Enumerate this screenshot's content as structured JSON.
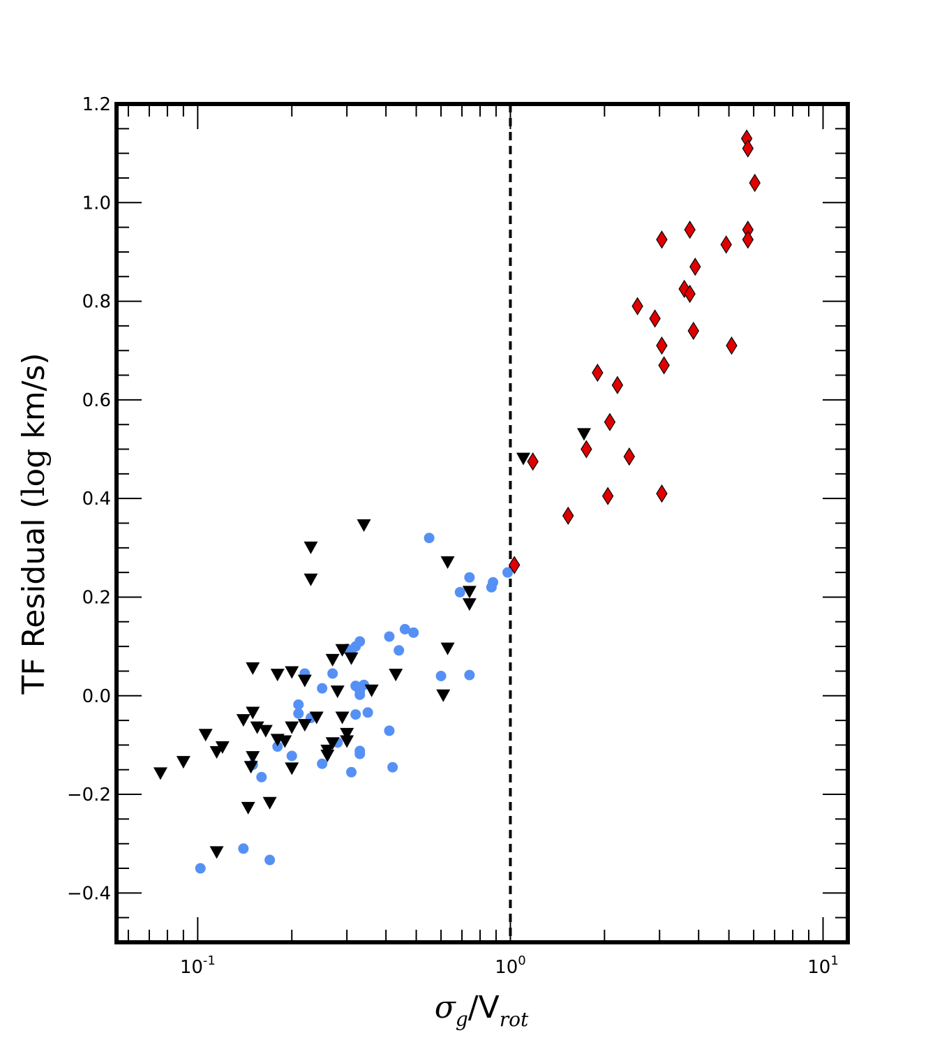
{
  "chart_data": {
    "type": "scatter",
    "xscale": "log",
    "xlim": [
      0.055,
      12
    ],
    "ylim": [
      -0.5,
      1.2
    ],
    "grid": false,
    "legend": "none",
    "xlabel": {
      "sigma": "σ",
      "sub1": "g",
      "mid": "/V",
      "sub2": "rot"
    },
    "ylabel": {
      "pre": "TF Residual (",
      "log": "log",
      "post": " km/s)"
    },
    "x_ticks": [
      {
        "value": 0.1,
        "base": "10",
        "exp": "-1"
      },
      {
        "value": 1,
        "base": "10",
        "exp": "0"
      },
      {
        "value": 10,
        "base": "10",
        "exp": "1"
      }
    ],
    "y_ticks": [
      {
        "value": 1.2,
        "label": "1.2"
      },
      {
        "value": 1.0,
        "label": "1.0"
      },
      {
        "value": 0.8,
        "label": "0.8"
      },
      {
        "value": 0.6,
        "label": "0.6"
      },
      {
        "value": 0.4,
        "label": "0.4"
      },
      {
        "value": 0.2,
        "label": "0.2"
      },
      {
        "value": 0.0,
        "label": "0.0"
      },
      {
        "value": -0.2,
        "label": "−0.2"
      },
      {
        "value": -0.4,
        "label": "−0.4"
      }
    ],
    "reference_line": {
      "x": 1.0,
      "style": "dashed",
      "color": "#000000"
    },
    "series": [
      {
        "marker": "circle",
        "color": "#5590f5",
        "points": [
          [
            0.55,
            0.32
          ],
          [
            0.74,
            0.24
          ],
          [
            0.69,
            0.21
          ],
          [
            0.88,
            0.23
          ],
          [
            0.87,
            0.22
          ],
          [
            0.98,
            0.25
          ],
          [
            0.46,
            0.135
          ],
          [
            0.49,
            0.128
          ],
          [
            0.41,
            0.12
          ],
          [
            0.44,
            0.092
          ],
          [
            0.33,
            0.11
          ],
          [
            0.32,
            0.1
          ],
          [
            0.3,
            0.095
          ],
          [
            0.31,
            0.09
          ],
          [
            0.22,
            0.045
          ],
          [
            0.27,
            0.045
          ],
          [
            0.32,
            0.02
          ],
          [
            0.34,
            0.022
          ],
          [
            0.33,
            0.01
          ],
          [
            0.33,
            0.002
          ],
          [
            0.25,
            0.015
          ],
          [
            0.6,
            0.04
          ],
          [
            0.74,
            0.042
          ],
          [
            0.21,
            -0.018
          ],
          [
            0.21,
            -0.036
          ],
          [
            0.23,
            -0.045
          ],
          [
            0.32,
            -0.038
          ],
          [
            0.35,
            -0.034
          ],
          [
            0.41,
            -0.071
          ],
          [
            0.28,
            -0.095
          ],
          [
            0.18,
            -0.103
          ],
          [
            0.33,
            -0.112
          ],
          [
            0.33,
            -0.118
          ],
          [
            0.2,
            -0.122
          ],
          [
            0.25,
            -0.138
          ],
          [
            0.42,
            -0.145
          ],
          [
            0.15,
            -0.14
          ],
          [
            0.31,
            -0.155
          ],
          [
            0.16,
            -0.165
          ],
          [
            0.14,
            -0.31
          ],
          [
            0.17,
            -0.333
          ],
          [
            0.102,
            -0.35
          ]
        ]
      },
      {
        "marker": "triangle-down",
        "color": "#000000",
        "points": [
          [
            0.34,
            0.345
          ],
          [
            0.23,
            0.3
          ],
          [
            0.23,
            0.235
          ],
          [
            0.63,
            0.27
          ],
          [
            0.74,
            0.21
          ],
          [
            0.74,
            0.185
          ],
          [
            0.63,
            0.095
          ],
          [
            0.29,
            0.092
          ],
          [
            0.31,
            0.075
          ],
          [
            0.27,
            0.072
          ],
          [
            0.15,
            0.055
          ],
          [
            0.2,
            0.047
          ],
          [
            0.18,
            0.042
          ],
          [
            0.43,
            0.042
          ],
          [
            0.22,
            0.03
          ],
          [
            0.36,
            0.01
          ],
          [
            0.28,
            0.008
          ],
          [
            0.61,
            0.0
          ],
          [
            0.24,
            -0.045
          ],
          [
            0.29,
            -0.045
          ],
          [
            0.14,
            -0.05
          ],
          [
            0.15,
            -0.035
          ],
          [
            0.155,
            -0.065
          ],
          [
            0.165,
            -0.072
          ],
          [
            0.2,
            -0.065
          ],
          [
            0.22,
            -0.06
          ],
          [
            0.106,
            -0.08
          ],
          [
            0.3,
            -0.078
          ],
          [
            0.18,
            -0.09
          ],
          [
            0.19,
            -0.093
          ],
          [
            0.27,
            -0.097
          ],
          [
            0.3,
            -0.093
          ],
          [
            0.12,
            -0.105
          ],
          [
            0.115,
            -0.115
          ],
          [
            0.26,
            -0.112
          ],
          [
            0.26,
            -0.122
          ],
          [
            0.15,
            -0.125
          ],
          [
            0.09,
            -0.135
          ],
          [
            0.148,
            -0.145
          ],
          [
            0.2,
            -0.148
          ],
          [
            0.076,
            -0.158
          ],
          [
            0.17,
            -0.218
          ],
          [
            0.145,
            -0.228
          ],
          [
            0.115,
            -0.318
          ],
          [
            1.1,
            0.48
          ],
          [
            1.72,
            0.53
          ]
        ]
      },
      {
        "marker": "diamond",
        "color": "#e00000",
        "points": [
          [
            5.7,
            1.13
          ],
          [
            5.75,
            1.11
          ],
          [
            6.05,
            1.04
          ],
          [
            3.75,
            0.945
          ],
          [
            5.75,
            0.945
          ],
          [
            3.05,
            0.925
          ],
          [
            5.75,
            0.925
          ],
          [
            4.9,
            0.915
          ],
          [
            3.9,
            0.87
          ],
          [
            3.6,
            0.825
          ],
          [
            3.75,
            0.815
          ],
          [
            2.55,
            0.79
          ],
          [
            2.9,
            0.765
          ],
          [
            3.85,
            0.74
          ],
          [
            3.05,
            0.71
          ],
          [
            5.1,
            0.71
          ],
          [
            3.1,
            0.67
          ],
          [
            1.9,
            0.655
          ],
          [
            2.2,
            0.63
          ],
          [
            2.08,
            0.555
          ],
          [
            1.75,
            0.5
          ],
          [
            2.4,
            0.485
          ],
          [
            1.18,
            0.475
          ],
          [
            3.05,
            0.41
          ],
          [
            2.05,
            0.405
          ],
          [
            1.53,
            0.365
          ],
          [
            1.03,
            0.265
          ]
        ]
      }
    ]
  }
}
